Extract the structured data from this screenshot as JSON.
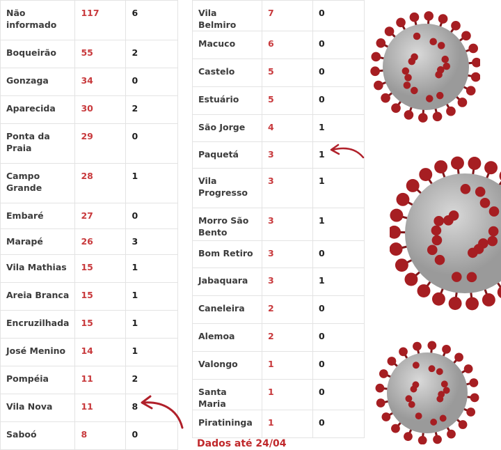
{
  "left_table": {
    "rows": [
      {
        "bairro": "Não informado",
        "casos": "117",
        "obitos": "6"
      },
      {
        "bairro": "Boqueirão",
        "casos": "55",
        "obitos": "2"
      },
      {
        "bairro": "Gonzaga",
        "casos": "34",
        "obitos": "0"
      },
      {
        "bairro": "Aparecida",
        "casos": "30",
        "obitos": "2"
      },
      {
        "bairro": "Ponta da Praia",
        "casos": "29",
        "obitos": "0"
      },
      {
        "bairro": "Campo Grande",
        "casos": "28",
        "obitos": "1"
      },
      {
        "bairro": "Embaré",
        "casos": "27",
        "obitos": "0"
      },
      {
        "bairro": "Marapé",
        "casos": "26",
        "obitos": "3"
      },
      {
        "bairro": "Vila Mathias",
        "casos": "15",
        "obitos": "1"
      },
      {
        "bairro": "Areia Branca",
        "casos": "15",
        "obitos": "1"
      },
      {
        "bairro": "Encruzilhada",
        "casos": "15",
        "obitos": "1"
      },
      {
        "bairro": "José Menino",
        "casos": "14",
        "obitos": "1"
      },
      {
        "bairro": "Pompéia",
        "casos": "11",
        "obitos": "2"
      },
      {
        "bairro": "Vila Nova",
        "casos": "11",
        "obitos": "8"
      },
      {
        "bairro": "Saboó",
        "casos": "8",
        "obitos": "0"
      }
    ]
  },
  "right_table": {
    "rows": [
      {
        "bairro": "Vila Belmiro",
        "casos": "7",
        "obitos": "0"
      },
      {
        "bairro": "Macuco",
        "casos": "6",
        "obitos": "0"
      },
      {
        "bairro": "Castelo",
        "casos": "5",
        "obitos": "0"
      },
      {
        "bairro": "Estuário",
        "casos": "5",
        "obitos": "0"
      },
      {
        "bairro": "São Jorge",
        "casos": "4",
        "obitos": "1"
      },
      {
        "bairro": "Paquetá",
        "casos": "3",
        "obitos": "1"
      },
      {
        "bairro": "Vila Progresso",
        "casos": "3",
        "obitos": "1"
      },
      {
        "bairro": "Morro São Bento",
        "casos": "3",
        "obitos": "1"
      },
      {
        "bairro": "Bom Retiro",
        "casos": "3",
        "obitos": "0"
      },
      {
        "bairro": "Jabaquara",
        "casos": "3",
        "obitos": "1"
      },
      {
        "bairro": "Caneleira",
        "casos": "2",
        "obitos": "0"
      },
      {
        "bairro": "Alemoa",
        "casos": "2",
        "obitos": "0"
      },
      {
        "bairro": "Valongo",
        "casos": "1",
        "obitos": "0"
      },
      {
        "bairro": "Santa Maria",
        "casos": "1",
        "obitos": "0"
      },
      {
        "bairro": "Piratininga",
        "casos": "1",
        "obitos": "0"
      }
    ]
  },
  "footer_note": "Dados até 24/04",
  "colors": {
    "cases_text": "#c8393c",
    "arrow": "#b0202a",
    "virus_body": "#9a9a9a",
    "virus_spike": "#a61e22"
  },
  "icons": [
    "curved-arrow-icon",
    "coronavirus-icon"
  ]
}
